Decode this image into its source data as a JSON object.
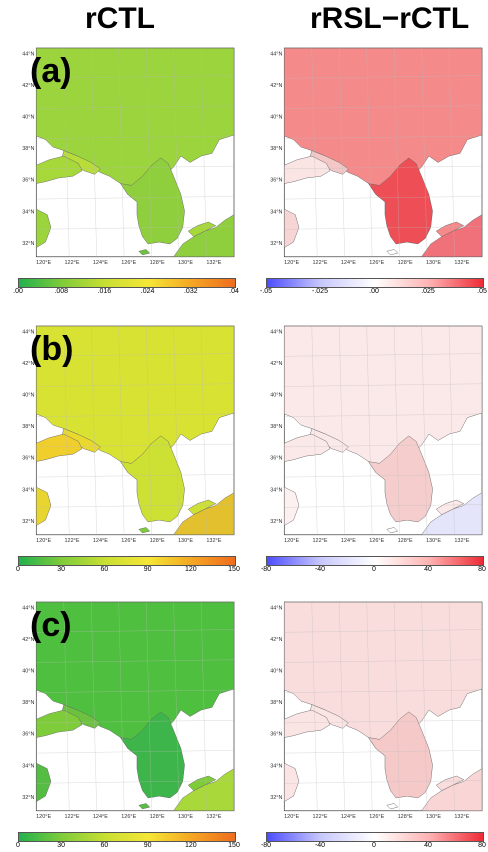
{
  "columns": {
    "left_title": "rCTL",
    "right_title": "rRSL−rCTL"
  },
  "lat_labels": [
    "44°N",
    "42°N",
    "40°N",
    "38°N",
    "36°N",
    "34°N",
    "32°N"
  ],
  "lon_labels": [
    "120°E",
    "122°E",
    "124°E",
    "126°E",
    "128°E",
    "130°E",
    "132°E"
  ],
  "rows": [
    {
      "label": "(a)",
      "left_ticks": [
        ".00",
        ".008",
        ".016",
        ".024",
        ".032",
        ".04"
      ],
      "right_ticks": [
        "-.05",
        "-.025",
        ".00",
        ".025",
        ".05"
      ]
    },
    {
      "label": "(b)",
      "left_ticks": [
        "0",
        "30",
        "60",
        "90",
        "120",
        "150"
      ],
      "right_ticks": [
        "-80",
        "-40",
        "0",
        "40",
        "80"
      ]
    },
    {
      "label": "(c)",
      "left_ticks": [
        "0",
        "30",
        "60",
        "90",
        "120",
        "150"
      ],
      "right_ticks": [
        "-80",
        "-40",
        "0",
        "40",
        "80"
      ]
    }
  ],
  "colors": {
    "left_scale": [
      "#22b14c",
      "#7fcc3a",
      "#c9df33",
      "#f5e636",
      "#f5a623",
      "#ef6c1e"
    ],
    "right_scale": [
      "#4d4dff",
      "#c8c8ff",
      "#ffffff",
      "#ffb3b3",
      "#ee2a35"
    ]
  }
}
